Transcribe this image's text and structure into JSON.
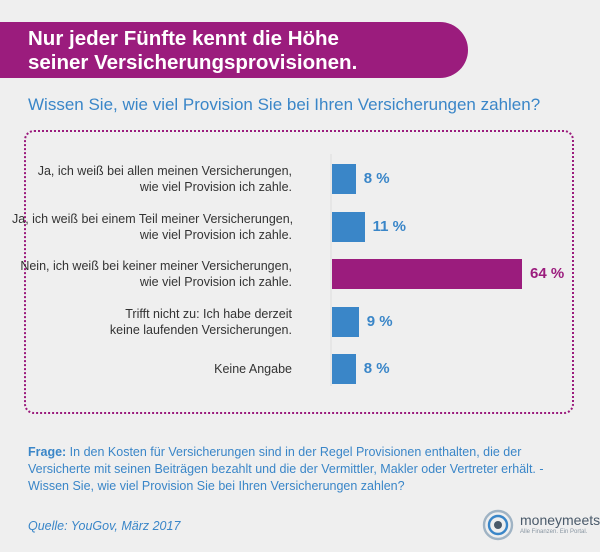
{
  "header": {
    "title_line1": "Nur jeder Fünfte kennt die Höhe",
    "title_line2": "seiner Versicherungsprovisionen."
  },
  "colors": {
    "banner": "#9b1c7d",
    "bar_default": "#3a86c8",
    "bar_highlight": "#9b1c7d",
    "text_blue": "#3a86c8",
    "background": "#efefef"
  },
  "chart_data": {
    "type": "bar",
    "orientation": "horizontal",
    "title": "Wissen Sie, wie viel Provision Sie bei Ihren Versicherungen zahlen?",
    "categories": [
      [
        "Ja, ich weiß bei allen meinen Versicherungen,",
        "wie viel Provision ich zahle."
      ],
      [
        "Ja, ich weiß bei einem Teil meiner Versicherungen,",
        "wie viel Provision ich zahle."
      ],
      [
        "Nein, ich weiß bei keiner meiner Versicherungen,",
        "wie viel Provision ich zahle."
      ],
      [
        "Trifft nicht zu: Ich habe derzeit",
        "keine laufenden Versicherungen."
      ],
      [
        "Keine Angabe"
      ]
    ],
    "values": [
      8,
      11,
      64,
      9,
      8
    ],
    "value_labels": [
      "8 %",
      "11 %",
      "64 %",
      "9 %",
      "8 %"
    ],
    "highlight_index": 2,
    "unit": "%",
    "xlim": [
      0,
      64
    ],
    "grid": false,
    "legend": "none"
  },
  "footer": {
    "question_lead": "Frage:",
    "question_text": " In den Kosten für Versicherungen sind in der Regel Provisionen enthalten, die der Versicherte mit seinen Beiträgen bezahlt und die der Vermittler, Makler oder Vertreter erhält. - Wissen Sie, wie viel Provision Sie bei Ihren Versicherungen zahlen?",
    "source": "Quelle: YouGov, März 2017"
  },
  "brand": {
    "logo_icon": "moneymeets-circle-logo",
    "name": "moneymeets",
    "tagline": "Alle Finanzen. Ein Portal."
  }
}
